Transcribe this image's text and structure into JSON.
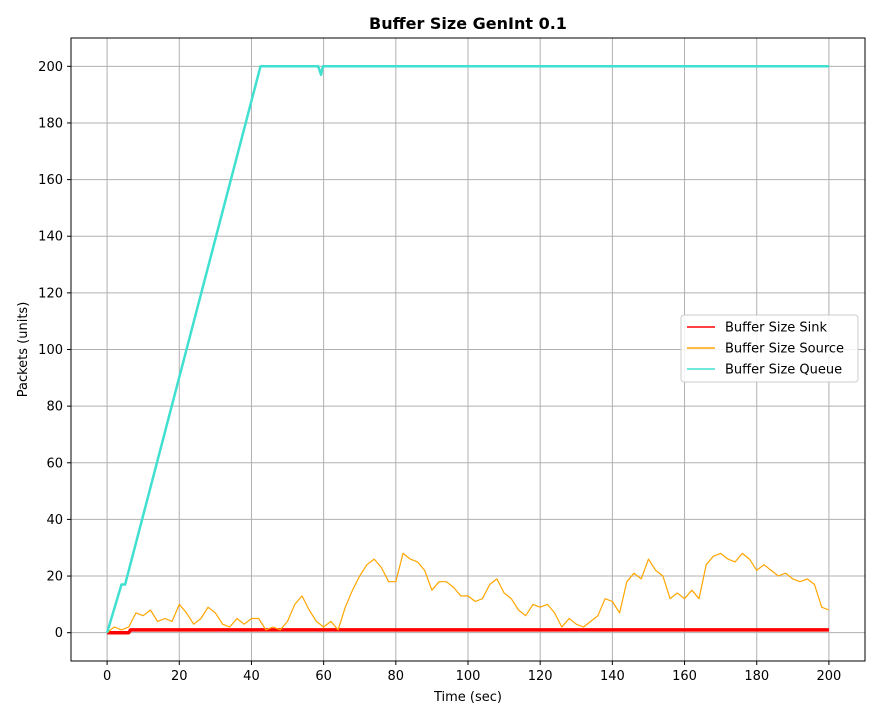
{
  "chart_data": {
    "type": "line",
    "title": "Buffer Size GenInt 0.1",
    "xlabel": "Time (sec)",
    "ylabel": "Packets (units)",
    "xlim": [
      -10,
      210
    ],
    "ylim": [
      -10,
      210
    ],
    "xticks": [
      0,
      20,
      40,
      60,
      80,
      100,
      120,
      140,
      160,
      180,
      200
    ],
    "yticks": [
      0,
      20,
      40,
      60,
      80,
      100,
      120,
      140,
      160,
      180,
      200
    ],
    "grid": true,
    "legend_position": "center-right",
    "series": [
      {
        "name": "Buffer Size Sink",
        "color": "#ff0000",
        "x": [
          0,
          6,
          6.5,
          200
        ],
        "y": [
          0,
          0,
          1,
          1
        ]
      },
      {
        "name": "Buffer Size Source",
        "color": "#ffa500",
        "x": [
          0,
          2,
          4,
          6,
          8,
          10,
          12,
          14,
          16,
          18,
          20,
          22,
          24,
          26,
          28,
          30,
          32,
          34,
          36,
          38,
          40,
          42,
          44,
          46,
          48,
          50,
          52,
          54,
          56,
          58,
          60,
          62,
          64,
          66,
          68,
          70,
          72,
          74,
          76,
          78,
          80,
          82,
          84,
          86,
          88,
          90,
          92,
          94,
          96,
          98,
          100,
          102,
          104,
          106,
          108,
          110,
          112,
          114,
          116,
          118,
          120,
          122,
          124,
          126,
          128,
          130,
          132,
          134,
          136,
          138,
          140,
          142,
          144,
          146,
          148,
          150,
          152,
          154,
          156,
          158,
          160,
          162,
          164,
          166,
          168,
          170,
          172,
          174,
          176,
          178,
          180,
          182,
          184,
          186,
          188,
          190,
          192,
          194,
          196,
          198,
          200
        ],
        "y": [
          0,
          2,
          1,
          2,
          7,
          6,
          8,
          4,
          5,
          4,
          10,
          7,
          3,
          5,
          9,
          7,
          3,
          2,
          5,
          3,
          5,
          5,
          1,
          2,
          1,
          4,
          10,
          13,
          8,
          4,
          2,
          4,
          1,
          9,
          15,
          20,
          24,
          26,
          23,
          18,
          18,
          28,
          26,
          25,
          22,
          15,
          18,
          18,
          16,
          13,
          13,
          11,
          12,
          17,
          19,
          14,
          12,
          8,
          6,
          10,
          9,
          10,
          7,
          2,
          5,
          3,
          2,
          4,
          6,
          12,
          11,
          7,
          18,
          21,
          19,
          26,
          22,
          20,
          12,
          14,
          12,
          15,
          12,
          24,
          27,
          28,
          26,
          25,
          28,
          26,
          22,
          24,
          22,
          20,
          21,
          19,
          18,
          19,
          17,
          9,
          8
        ]
      },
      {
        "name": "Buffer Size Queue",
        "color": "#40e0d0",
        "x": [
          0,
          4,
          5,
          42.5,
          58.5,
          59.3,
          59.8,
          60.2,
          200
        ],
        "y": [
          0,
          17,
          17,
          200,
          200,
          197,
          200,
          200,
          200
        ]
      }
    ]
  }
}
